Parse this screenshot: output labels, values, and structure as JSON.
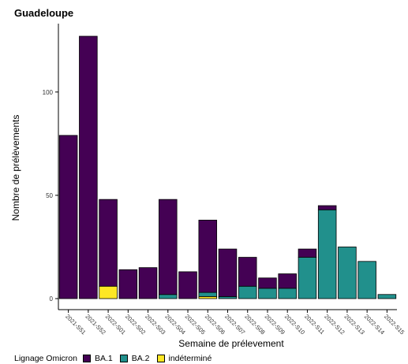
{
  "chart_data": {
    "type": "bar",
    "stacked": true,
    "title": "Guadeloupe",
    "xlabel": "Semaine de prélevement",
    "ylabel": "Nombre de prélèvements",
    "categories": [
      "2021-S51",
      "2021-S52",
      "2022-S01",
      "2022-S02",
      "2022-S03",
      "2022-S04",
      "2022-S05",
      "2022-S06",
      "2022-S07",
      "2022-S08",
      "2022-S09",
      "2022-S10",
      "2022-S11",
      "2022-S12",
      "2022-S13",
      "2022-S14",
      "2022-S15"
    ],
    "series": [
      {
        "name": "indéterminé",
        "color": "#FDE725",
        "values": [
          0,
          0,
          6,
          0,
          0,
          0,
          0,
          1,
          0,
          0,
          0,
          0,
          0,
          0,
          0,
          0,
          0
        ]
      },
      {
        "name": "BA.2",
        "color": "#21908C",
        "values": [
          0,
          0,
          0,
          0,
          0,
          2,
          0,
          2,
          1,
          6,
          5,
          5,
          20,
          43,
          25,
          18,
          2
        ]
      },
      {
        "name": "BA.1",
        "color": "#440154",
        "values": [
          79,
          127,
          42,
          14,
          15,
          46,
          13,
          35,
          23,
          14,
          5,
          7,
          4,
          2,
          0,
          0,
          0
        ]
      }
    ],
    "ylim": [
      0,
      130
    ],
    "yticks": [
      0,
      50,
      100
    ],
    "grid": false,
    "legend": {
      "title": "Lignage Omicron",
      "position": "bottom",
      "order": [
        "BA.1",
        "BA.2",
        "indéterminé"
      ]
    }
  }
}
